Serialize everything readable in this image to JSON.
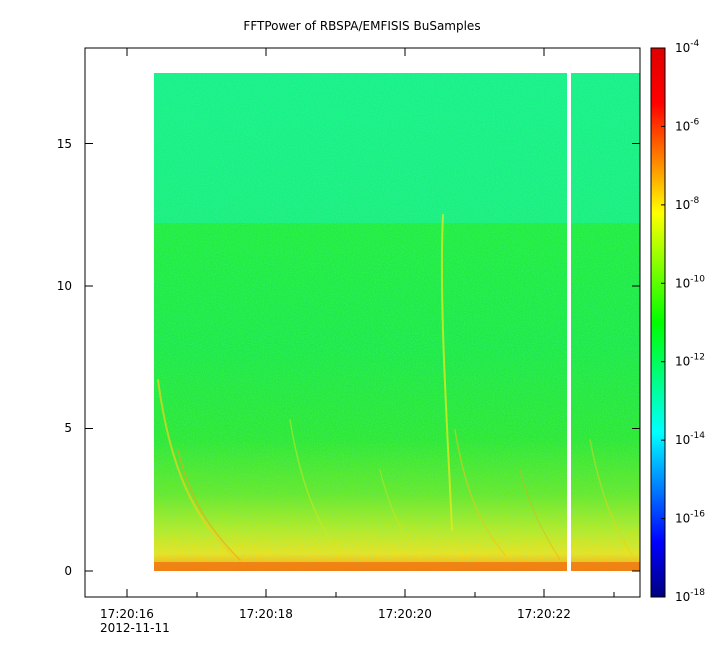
{
  "chart_data": {
    "type": "heatmap",
    "title": "FFTPower of RBSPA/EMFISIS  BuSamples",
    "xlabel": "",
    "ylabel": "",
    "x_tick_labels": [
      "17:20:16",
      "17:20:18",
      "17:20:20",
      "17:20:22"
    ],
    "x_date_label": "2012-11-11",
    "x_range": [
      "17:20:15.57",
      "17:20:23.51"
    ],
    "data_x_range": [
      "17:20:16.57",
      "17:20:23.51"
    ],
    "data_gap_at": "17:20:22.34",
    "y_tick_labels": [
      "0",
      "5",
      "10",
      "15"
    ],
    "ylim": [
      -0.9,
      18.3
    ],
    "y_data_range": [
      0,
      17.5
    ],
    "colorbar": {
      "scale": "log",
      "range": [
        "1e-18",
        "1e-4"
      ],
      "tick_bases": [
        "10",
        "10",
        "10",
        "10",
        "10",
        "10",
        "10",
        "10"
      ],
      "tick_exponents": [
        "-18",
        "-16",
        "-14",
        "-12",
        "-10",
        "-8",
        "-6",
        "-4"
      ],
      "colormap": [
        "#00007f",
        "#0000ff",
        "#007fff",
        "#00ffff",
        "#00ff7f",
        "#00ff00",
        "#7fff00",
        "#ffff00",
        "#ff7f00",
        "#ff0000",
        "#df0000"
      ]
    },
    "grid": false
  }
}
